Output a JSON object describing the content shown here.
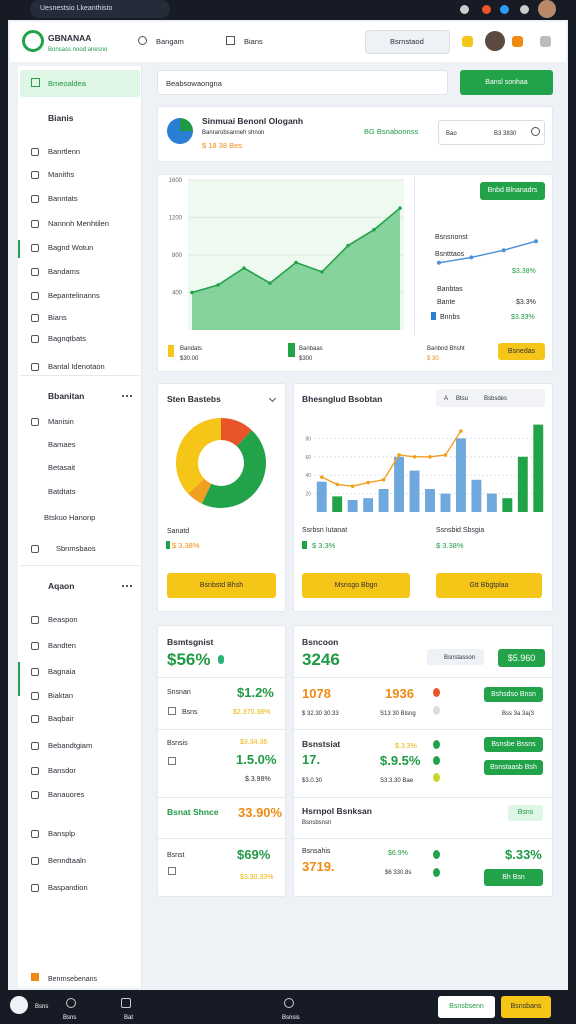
{
  "browser": {
    "tab": "Uesnestsio Lkeanthisto"
  },
  "header": {
    "logo": "GBNANAA",
    "tagline": "Bonsass nood anesno",
    "nav": [
      "Bangam",
      "Bians"
    ],
    "search": "Bsrnstaod"
  },
  "sidebar": {
    "active": "Bmeoaldea",
    "items": [
      "Bianis",
      "Banrtlenn",
      "Maniths",
      "Banntats",
      "Nannnh Menhtilen",
      "Bagnd Wotun",
      "Bandams",
      "Bepantelinanns",
      "Bians",
      "Bagnqtbats",
      "Bantal Idenotaon",
      "Bbanitan",
      "Manisin",
      "Bamaes",
      "Betasait",
      "Batdtats",
      "Btskuo Hanonp",
      "Sbnmsbaos",
      "Aqaon",
      "Beaspon",
      "Bandten",
      "Bagnaia",
      "Biaktan",
      "Baqbair",
      "Bebandtgiam",
      "Bansdor",
      "Banauores",
      "Bansplp",
      "Benndtaaln",
      "Baspandion"
    ],
    "footer": "Benrnsebenans"
  },
  "toolbar": {
    "search": "Beabsowaongna",
    "button": "Bansl sonhaa"
  },
  "summary": {
    "title": "Sinmuai Benonl Ologanh",
    "subtitle": "Banrarobsanneh shnon",
    "amount": "$ 18 38 Bes",
    "tag": "BG Bsnabonnss",
    "input_label": "Bao",
    "input_value": "B3 3830"
  },
  "trend": {
    "button": "Bnbd Blnanadrs",
    "side": [
      "Bsnsnonst",
      "Bsntttaos",
      "$3.38%",
      "Banbtas",
      "Bante",
      "$3.3%",
      "Bnnbs",
      "$3.33%"
    ],
    "legend": [
      "Bandats",
      "$30.00",
      "Banbaas",
      "$300",
      "Banbnd Bhsht",
      "$ 30"
    ],
    "action": "Bsnedas"
  },
  "trend_chart": {
    "type": "area",
    "categories": [
      null,
      null,
      null,
      null,
      null,
      null,
      null,
      null,
      null
    ],
    "values": [
      400,
      480,
      660,
      500,
      720,
      620,
      900,
      1070,
      1300
    ],
    "ylim": [
      0,
      1600
    ],
    "yticks": [
      400,
      800,
      1200,
      1600
    ],
    "color": "#22a34a",
    "grid": true
  },
  "mini_chart": {
    "type": "line",
    "values": [
      20,
      35,
      55,
      80
    ],
    "ylim": [
      0,
      100
    ],
    "color": "#4a90d9"
  },
  "share": {
    "title": "Sten Bastebs",
    "label": "Sanatd",
    "value": "$ 3.38%",
    "button": "Bsnbstd Bhsh"
  },
  "share_chart": {
    "type": "pie",
    "values": [
      12,
      45,
      6,
      37
    ],
    "colors": [
      "#e8552a",
      "#22a34a",
      "#f0a020",
      "#f5c518"
    ]
  },
  "mix": {
    "title": "Bhesnglud Bsobtan",
    "controls": [
      "A",
      "Btsu",
      "Bsbsdes"
    ],
    "stats": [
      "Ssrbsn Iutanat",
      "$ 3.3%",
      "Ssnsbid Sbsgia",
      "$ 3.38%"
    ],
    "buttons": [
      "Msnsgo Bbgn",
      "Gtt Bbgtplaa"
    ]
  },
  "mix_chart": {
    "type": "bar",
    "categories": [
      null,
      null,
      null,
      null,
      null,
      null,
      null,
      null,
      null,
      null,
      null,
      null,
      null,
      null,
      null
    ],
    "ylim": [
      0,
      100
    ],
    "yticks": [
      20,
      40,
      60,
      80
    ],
    "grid": true,
    "series": [
      {
        "type": "bar",
        "colors": [
          "#6fa8dc",
          "#22a34a",
          "#6fa8dc",
          "#6fa8dc",
          "#6fa8dc",
          "#6fa8dc",
          "#6fa8dc",
          "#6fa8dc",
          "#6fa8dc",
          "#6fa8dc",
          "#6fa8dc",
          "#6fa8dc",
          "#22a34a",
          "#22a34a",
          "#22a34a"
        ],
        "values": [
          33,
          17,
          13,
          15,
          25,
          60,
          45,
          25,
          20,
          80,
          35,
          20,
          15,
          60,
          95
        ]
      },
      {
        "type": "line",
        "color": "#f0a020",
        "values": [
          38,
          30,
          28,
          32,
          35,
          62,
          60,
          60,
          62,
          88,
          null,
          null,
          null,
          null,
          null
        ]
      }
    ]
  },
  "kpi_left": {
    "title": "Bsmtsgnist",
    "value": "$56%",
    "rows": [
      [
        "Snsnan",
        "$1.2%",
        "Bsns",
        "$2.370.38%"
      ],
      [
        "Bsnsis",
        "$3.34.36",
        "1.5.0%",
        "$.3.98%"
      ],
      [
        "Bsnat Shnce",
        "33.90%"
      ],
      [
        "Bsnst",
        "$69%",
        "$3.30.33%"
      ]
    ]
  },
  "kpi_right": {
    "title": "Bsncoon",
    "value": "3246",
    "search": "Bsnstasson",
    "pill": "$5.960",
    "rows": [
      [
        "1078",
        "1936",
        "$ 32.30 30.33",
        "S13 30 Blsng",
        "Bshsdso Bnsn",
        "Bss 3a 3a(3"
      ],
      [
        "Bsnstsiat",
        "17.",
        "$.3.3%",
        "$.9.5%",
        "$3.0.30",
        "S3:3.30 Bae",
        "Bsnsbe Bssns",
        "Bsnstaasb Bsh"
      ],
      [
        "Hsrnpol Bsnksan",
        "Bsnsbsnsn",
        "Bsns"
      ],
      [
        "Bsnsahis",
        "3719.",
        "$6.9%",
        "$6 330.8s",
        "$.33%",
        "Bh Bsn"
      ]
    ]
  },
  "bottom": {
    "items": [
      "Bsns",
      "Bsns",
      "Bat",
      "Bsnsis"
    ],
    "buttons": [
      "Bsnsbsenn",
      "Bsnsbans"
    ]
  }
}
